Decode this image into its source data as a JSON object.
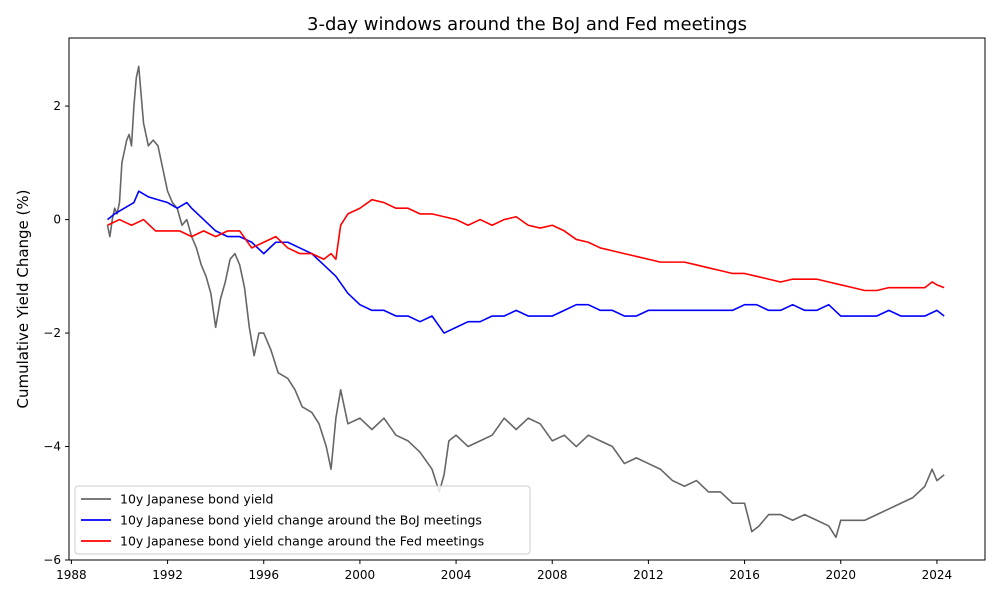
{
  "chart_data": {
    "type": "line",
    "title": "3-day windows around the BoJ and Fed meetings",
    "xlabel": "",
    "ylabel": "Cumulative Yield Change (%)",
    "xlim": [
      1987.9,
      2026.0
    ],
    "ylim": [
      -6,
      3.2
    ],
    "x_ticks": [
      1988,
      1992,
      1996,
      2000,
      2004,
      2008,
      2012,
      2016,
      2020,
      2024
    ],
    "x_tick_labels": [
      "1988",
      "1992",
      "1996",
      "2000",
      "2004",
      "2008",
      "2012",
      "2016",
      "2020",
      "2024"
    ],
    "y_ticks": [
      -6,
      -4,
      -2,
      0,
      2
    ],
    "y_tick_labels": [
      "−6",
      "−4",
      "−2",
      "0",
      "2"
    ],
    "grid": false,
    "legend_position": "lower-left",
    "series": [
      {
        "name": "10y Japanese bond yield",
        "color": "#666666",
        "x": [
          1989.5,
          1989.6,
          1989.7,
          1989.8,
          1989.9,
          1990.0,
          1990.1,
          1990.2,
          1990.3,
          1990.4,
          1990.5,
          1990.6,
          1990.7,
          1990.8,
          1990.9,
          1991.0,
          1991.2,
          1991.4,
          1991.6,
          1991.8,
          1992.0,
          1992.2,
          1992.4,
          1992.6,
          1992.8,
          1993.0,
          1993.2,
          1993.4,
          1993.6,
          1993.8,
          1994.0,
          1994.2,
          1994.4,
          1994.6,
          1994.8,
          1995.0,
          1995.2,
          1995.4,
          1995.6,
          1995.8,
          1996.0,
          1996.3,
          1996.6,
          1997.0,
          1997.3,
          1997.6,
          1998.0,
          1998.3,
          1998.6,
          1998.8,
          1999.0,
          1999.2,
          1999.5,
          2000.0,
          2000.5,
          2001.0,
          2001.5,
          2002.0,
          2002.5,
          2003.0,
          2003.3,
          2003.5,
          2003.7,
          2004.0,
          2004.5,
          2005.0,
          2005.5,
          2006.0,
          2006.5,
          2007.0,
          2007.5,
          2008.0,
          2008.5,
          2009.0,
          2009.5,
          2010.0,
          2010.5,
          2011.0,
          2011.5,
          2012.0,
          2012.5,
          2013.0,
          2013.5,
          2014.0,
          2014.5,
          2015.0,
          2015.5,
          2016.0,
          2016.3,
          2016.6,
          2017.0,
          2017.5,
          2018.0,
          2018.5,
          2019.0,
          2019.5,
          2019.8,
          2020.0,
          2020.5,
          2021.0,
          2021.5,
          2022.0,
          2022.5,
          2023.0,
          2023.5,
          2023.8,
          2024.0,
          2024.3
        ],
        "values": [
          -0.1,
          -0.3,
          0.0,
          0.2,
          0.1,
          0.3,
          1.0,
          1.2,
          1.4,
          1.5,
          1.3,
          2.0,
          2.5,
          2.7,
          2.2,
          1.7,
          1.3,
          1.4,
          1.3,
          0.9,
          0.5,
          0.3,
          0.2,
          -0.1,
          0.0,
          -0.3,
          -0.5,
          -0.8,
          -1.0,
          -1.3,
          -1.9,
          -1.4,
          -1.1,
          -0.7,
          -0.6,
          -0.8,
          -1.2,
          -1.9,
          -2.4,
          -2.0,
          -2.0,
          -2.3,
          -2.7,
          -2.8,
          -3.0,
          -3.3,
          -3.4,
          -3.6,
          -4.0,
          -4.4,
          -3.5,
          -3.0,
          -3.6,
          -3.5,
          -3.7,
          -3.5,
          -3.8,
          -3.9,
          -4.1,
          -4.4,
          -4.8,
          -4.5,
          -3.9,
          -3.8,
          -4.0,
          -3.9,
          -3.8,
          -3.5,
          -3.7,
          -3.5,
          -3.6,
          -3.9,
          -3.8,
          -4.0,
          -3.8,
          -3.9,
          -4.0,
          -4.3,
          -4.2,
          -4.3,
          -4.4,
          -4.6,
          -4.7,
          -4.6,
          -4.8,
          -4.8,
          -5.0,
          -5.0,
          -5.5,
          -5.4,
          -5.2,
          -5.2,
          -5.3,
          -5.2,
          -5.3,
          -5.4,
          -5.6,
          -5.3,
          -5.3,
          -5.3,
          -5.2,
          -5.1,
          -5.0,
          -4.9,
          -4.7,
          -4.4,
          -4.6,
          -4.5
        ]
      },
      {
        "name": "10y Japanese bond yield change around the BoJ meetings",
        "color": "#0000ff",
        "x": [
          1989.5,
          1989.8,
          1990.2,
          1990.6,
          1990.8,
          1991.2,
          1991.6,
          1992.0,
          1992.4,
          1992.8,
          1993.0,
          1993.5,
          1994.0,
          1994.5,
          1995.0,
          1995.5,
          1996.0,
          1996.5,
          1997.0,
          1997.5,
          1998.0,
          1998.5,
          1999.0,
          1999.5,
          2000.0,
          2000.5,
          2001.0,
          2001.5,
          2002.0,
          2002.5,
          2003.0,
          2003.5,
          2004.0,
          2004.5,
          2005.0,
          2005.5,
          2006.0,
          2006.5,
          2007.0,
          2007.5,
          2008.0,
          2008.5,
          2009.0,
          2009.5,
          2010.0,
          2010.5,
          2011.0,
          2011.5,
          2012.0,
          2012.5,
          2013.0,
          2013.5,
          2014.0,
          2014.5,
          2015.0,
          2015.5,
          2016.0,
          2016.5,
          2017.0,
          2017.5,
          2018.0,
          2018.5,
          2019.0,
          2019.5,
          2020.0,
          2020.5,
          2021.0,
          2021.5,
          2022.0,
          2022.5,
          2023.0,
          2023.5,
          2024.0,
          2024.3
        ],
        "values": [
          0.0,
          0.1,
          0.2,
          0.3,
          0.5,
          0.4,
          0.35,
          0.3,
          0.2,
          0.3,
          0.2,
          0.0,
          -0.2,
          -0.3,
          -0.3,
          -0.4,
          -0.6,
          -0.4,
          -0.4,
          -0.5,
          -0.6,
          -0.8,
          -1.0,
          -1.3,
          -1.5,
          -1.6,
          -1.6,
          -1.7,
          -1.7,
          -1.8,
          -1.7,
          -2.0,
          -1.9,
          -1.8,
          -1.8,
          -1.7,
          -1.7,
          -1.6,
          -1.7,
          -1.7,
          -1.7,
          -1.6,
          -1.5,
          -1.5,
          -1.6,
          -1.6,
          -1.7,
          -1.7,
          -1.6,
          -1.6,
          -1.6,
          -1.6,
          -1.6,
          -1.6,
          -1.6,
          -1.6,
          -1.5,
          -1.5,
          -1.6,
          -1.6,
          -1.5,
          -1.6,
          -1.6,
          -1.5,
          -1.7,
          -1.7,
          -1.7,
          -1.7,
          -1.6,
          -1.7,
          -1.7,
          -1.7,
          -1.6,
          -1.7
        ]
      },
      {
        "name": "10y Japanese bond yield change around the Fed meetings",
        "color": "#ff0000",
        "x": [
          1989.5,
          1990.0,
          1990.5,
          1991.0,
          1991.5,
          1992.0,
          1992.5,
          1993.0,
          1993.5,
          1994.0,
          1994.5,
          1995.0,
          1995.5,
          1996.0,
          1996.5,
          1997.0,
          1997.5,
          1998.0,
          1998.5,
          1998.8,
          1999.0,
          1999.2,
          1999.5,
          2000.0,
          2000.5,
          2001.0,
          2001.5,
          2002.0,
          2002.5,
          2003.0,
          2003.5,
          2004.0,
          2004.5,
          2005.0,
          2005.5,
          2006.0,
          2006.5,
          2007.0,
          2007.5,
          2008.0,
          2008.5,
          2009.0,
          2009.5,
          2010.0,
          2010.5,
          2011.0,
          2011.5,
          2012.0,
          2012.5,
          2013.0,
          2013.5,
          2014.0,
          2014.5,
          2015.0,
          2015.5,
          2016.0,
          2016.5,
          2017.0,
          2017.5,
          2018.0,
          2018.5,
          2019.0,
          2019.5,
          2020.0,
          2020.5,
          2021.0,
          2021.5,
          2022.0,
          2022.5,
          2023.0,
          2023.5,
          2023.8,
          2024.0,
          2024.3
        ],
        "values": [
          -0.1,
          0.0,
          -0.1,
          0.0,
          -0.2,
          -0.2,
          -0.2,
          -0.3,
          -0.2,
          -0.3,
          -0.2,
          -0.2,
          -0.5,
          -0.4,
          -0.3,
          -0.5,
          -0.6,
          -0.6,
          -0.7,
          -0.6,
          -0.7,
          -0.1,
          0.1,
          0.2,
          0.35,
          0.3,
          0.2,
          0.2,
          0.1,
          0.1,
          0.05,
          0.0,
          -0.1,
          0.0,
          -0.1,
          0.0,
          0.05,
          -0.1,
          -0.15,
          -0.1,
          -0.2,
          -0.35,
          -0.4,
          -0.5,
          -0.55,
          -0.6,
          -0.65,
          -0.7,
          -0.75,
          -0.75,
          -0.75,
          -0.8,
          -0.85,
          -0.9,
          -0.95,
          -0.95,
          -1.0,
          -1.05,
          -1.1,
          -1.05,
          -1.05,
          -1.05,
          -1.1,
          -1.15,
          -1.2,
          -1.25,
          -1.25,
          -1.2,
          -1.2,
          -1.2,
          -1.2,
          -1.1,
          -1.15,
          -1.2
        ]
      }
    ]
  }
}
